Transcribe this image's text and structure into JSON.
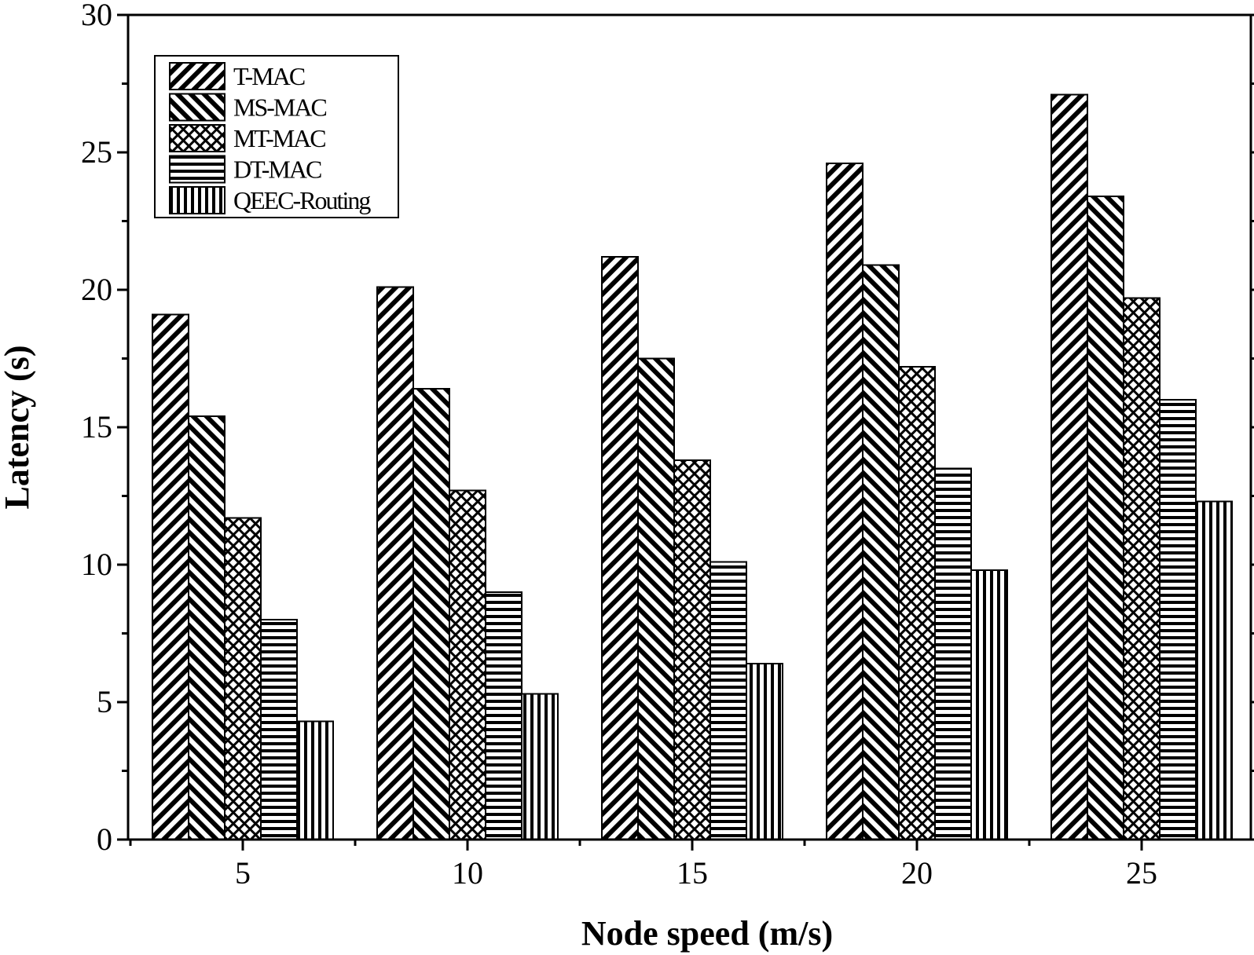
{
  "chart_data": {
    "type": "bar",
    "title": "",
    "xlabel": "Node speed (m/s)",
    "ylabel": "Latency (s)",
    "categories": [
      "5",
      "10",
      "15",
      "20",
      "25"
    ],
    "ylim": [
      0,
      30
    ],
    "yticks": [
      "0",
      "5",
      "10",
      "15",
      "20",
      "25",
      "30"
    ],
    "series": [
      {
        "name": "T-MAC",
        "values": [
          19.1,
          20.1,
          21.2,
          24.6,
          27.1
        ],
        "pattern": "diag-right"
      },
      {
        "name": "MS-MAC",
        "values": [
          15.4,
          16.4,
          17.5,
          20.9,
          23.4
        ],
        "pattern": "diag-left"
      },
      {
        "name": "MT-MAC",
        "values": [
          11.7,
          12.7,
          13.8,
          17.2,
          19.7
        ],
        "pattern": "crosshatch"
      },
      {
        "name": "DT-MAC",
        "values": [
          8.0,
          9.0,
          10.1,
          13.5,
          16.0
        ],
        "pattern": "horizontal"
      },
      {
        "name": "QEEC-Routing",
        "values": [
          4.3,
          5.3,
          6.4,
          9.8,
          12.3
        ],
        "pattern": "vertical"
      }
    ],
    "grid": false,
    "legend_position": "top-left"
  }
}
